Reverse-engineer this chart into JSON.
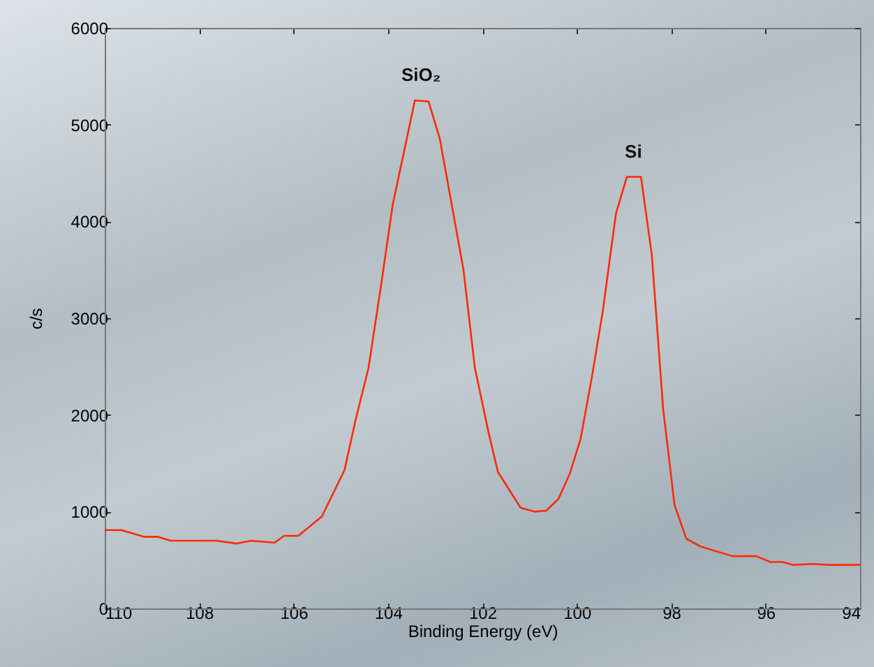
{
  "chart_data": {
    "type": "line",
    "xlabel": "Binding Energy (eV)",
    "ylabel": "c/s",
    "x": [
      110,
      109.65,
      109.16,
      108.87,
      108.6,
      107.63,
      107.2,
      106.9,
      106.4,
      106.2,
      105.9,
      105.4,
      104.92,
      104.68,
      104.41,
      104.14,
      103.9,
      103.43,
      103.14,
      102.9,
      102.67,
      102.4,
      102.16,
      101.87,
      101.67,
      101.19,
      100.89,
      100.65,
      100.39,
      100.15,
      99.92,
      99.68,
      99.45,
      99.17,
      98.94,
      98.64,
      98.41,
      98.17,
      97.93,
      97.68,
      97.38,
      96.7,
      96.2,
      95.9,
      95.65,
      95.42,
      95,
      94.68,
      94
    ],
    "series": [
      {
        "color": "#ff2a00",
        "values": [
          810,
          810,
          740,
          740,
          700,
          700,
          670,
          700,
          680,
          750,
          750,
          950,
          1430,
          1960,
          2490,
          3360,
          4170,
          5250,
          5240,
          4850,
          4230,
          3500,
          2490,
          1820,
          1410,
          1040,
          1000,
          1010,
          1130,
          1390,
          1750,
          2390,
          3070,
          4080,
          4460,
          4460,
          3650,
          2060,
          1070,
          720,
          640,
          540,
          540,
          480,
          480,
          450,
          460,
          450,
          450
        ]
      }
    ],
    "xlim": [
      110,
      94
    ],
    "xticks": [
      110,
      108,
      106,
      104,
      102,
      100,
      98,
      96,
      94
    ],
    "ylim": [
      0,
      6000
    ],
    "yticks": [
      0,
      1000,
      2000,
      3000,
      4000,
      5000,
      6000
    ],
    "grid": false,
    "marker": "none",
    "line_style": "solid",
    "annotations": [
      {
        "text": "SiO₂",
        "x": 103.3,
        "y": 5250
      },
      {
        "text": "Si",
        "x": 98.8,
        "y": 4460
      }
    ]
  }
}
